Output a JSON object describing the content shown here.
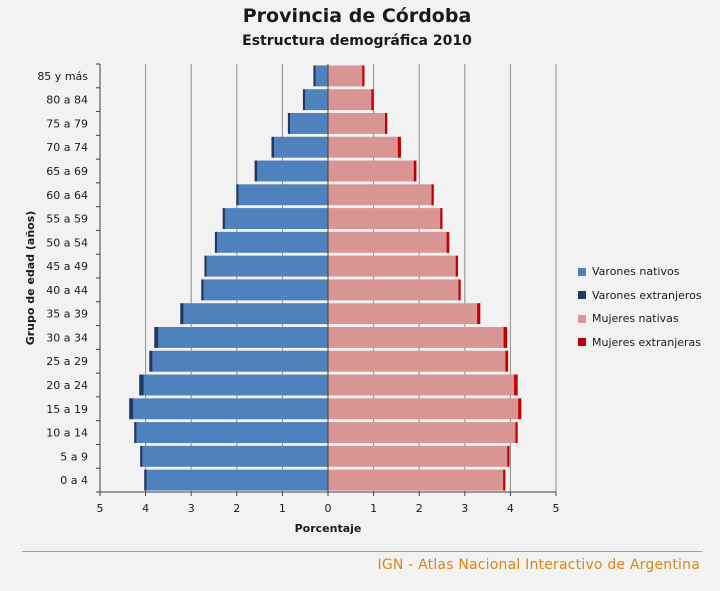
{
  "chart_data": {
    "type": "bar",
    "title": "Provincia de Córdoba",
    "subtitle": "Estructura demográfica 2010",
    "xlabel": "Porcentaje",
    "ylabel": "Grupo de edad (años)",
    "xlim": [
      -5,
      5
    ],
    "x_ticks": [
      "5",
      "4",
      "3",
      "2",
      "1",
      "0",
      "1",
      "2",
      "3",
      "4",
      "5"
    ],
    "categories": [
      "85 y más",
      "80 a 84",
      "75 a 79",
      "70 a 74",
      "65 a 69",
      "60 a 64",
      "55 a 59",
      "50 a 54",
      "45 a 49",
      "40 a 44",
      "35 a 39",
      "30 a 34",
      "25 a 29",
      "20 a 24",
      "15 a 19",
      "10 a 14",
      "5 a 9",
      "0 a 4"
    ],
    "grid": true,
    "legend_position": "right",
    "series": [
      {
        "name": "Varones nativos",
        "color": "#4f81bd",
        "values": [
          0.27,
          0.5,
          0.83,
          1.18,
          1.55,
          1.96,
          2.26,
          2.43,
          2.66,
          2.73,
          3.17,
          3.72,
          3.85,
          4.04,
          4.27,
          4.2,
          4.07,
          3.98
        ]
      },
      {
        "name": "Varones extranjeros",
        "color": "#1f3864",
        "values": [
          0.05,
          0.05,
          0.05,
          0.06,
          0.06,
          0.05,
          0.05,
          0.05,
          0.05,
          0.05,
          0.07,
          0.09,
          0.07,
          0.1,
          0.09,
          0.05,
          0.05,
          0.05
        ]
      },
      {
        "name": "Mujeres nativas",
        "color": "#d99594",
        "values": [
          0.75,
          0.95,
          1.25,
          1.53,
          1.88,
          2.27,
          2.46,
          2.6,
          2.8,
          2.86,
          3.27,
          3.85,
          3.89,
          4.08,
          4.17,
          4.11,
          3.93,
          3.84
        ]
      },
      {
        "name": "Mujeres extranjeras",
        "color": "#c00000",
        "values": [
          0.05,
          0.05,
          0.05,
          0.07,
          0.06,
          0.05,
          0.05,
          0.06,
          0.05,
          0.05,
          0.07,
          0.08,
          0.06,
          0.08,
          0.07,
          0.05,
          0.05,
          0.05
        ]
      }
    ]
  },
  "footer": {
    "text": "IGN - Atlas Nacional Interactivo de Argentina"
  }
}
